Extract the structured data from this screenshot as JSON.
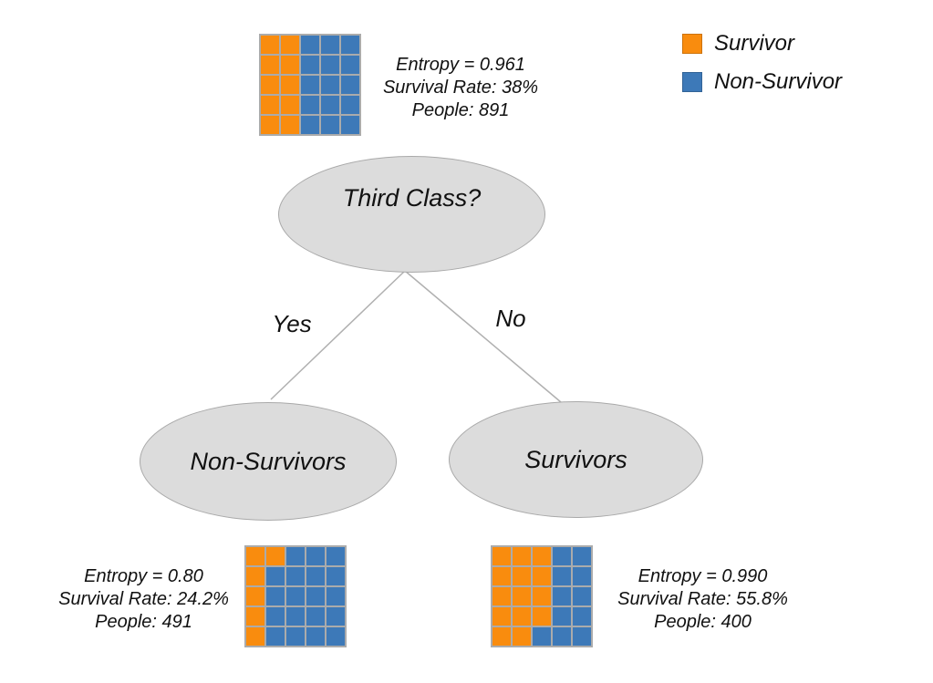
{
  "colors": {
    "survivor": "#F98C0E",
    "non_survivor": "#3D79B8",
    "node_fill": "#DCDCDC",
    "node_border": "#A9A9A9",
    "waffle_grid": "#ABABAB",
    "branch_line": "#B0B0B0"
  },
  "legend": {
    "survivor_label": "Survivor",
    "non_survivor_label": "Non-Survivor"
  },
  "root_node": {
    "label": "Third Class?",
    "entropy": "Entropy = 0.961",
    "survival_rate": "Survival Rate: 38%",
    "people": "People: 891",
    "waffle": [
      "OOBBB",
      "OOBBB",
      "OOBBB",
      "OOBBB",
      "OOBBB"
    ]
  },
  "branches": {
    "yes": "Yes",
    "no": "No"
  },
  "left_node": {
    "label": "Non-Survivors",
    "entropy": "Entropy = 0.80",
    "survival_rate": "Survival Rate: 24.2%",
    "people": "People: 491",
    "waffle": [
      "OOBBB",
      "OBBBB",
      "OBBBB",
      "OBBBB",
      "OBBBB"
    ]
  },
  "right_node": {
    "label": "Survivors",
    "entropy": "Entropy = 0.990",
    "survival_rate": "Survival Rate: 55.8%",
    "people": "People: 400",
    "waffle": [
      "OOOBB",
      "OOOBB",
      "OOOBB",
      "OOOBB",
      "OOBBB"
    ]
  }
}
